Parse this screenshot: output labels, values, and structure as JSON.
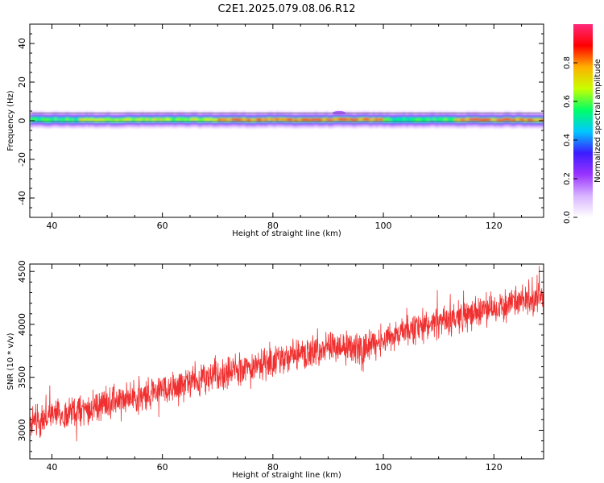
{
  "page": {
    "title": "C2E1.2025.079.08.06.R12"
  },
  "chart_data": [
    {
      "type": "heatmap",
      "xlabel": "Height of straight line (km)",
      "ylabel": "Frequency (Hz)",
      "xlim": [
        36,
        129
      ],
      "ylim": [
        -50,
        50
      ],
      "xticks": [
        "40",
        "60",
        "80",
        "100",
        "120"
      ],
      "yticks": [
        "40",
        "20",
        "0",
        "-20",
        "-40"
      ],
      "xtick_values": [
        40,
        60,
        80,
        100,
        120
      ],
      "ytick_values": [
        40,
        20,
        0,
        -20,
        -40
      ],
      "description_values": {
        "band_center_hz": 0.5,
        "band_halfwidth_hz": 4,
        "bright_segments": [
          {
            "from_km": 36,
            "to_km": 45,
            "peak": 0.55
          },
          {
            "from_km": 45,
            "to_km": 70,
            "peak": 0.65
          },
          {
            "from_km": 70,
            "to_km": 100,
            "peak": 0.85
          },
          {
            "from_km": 100,
            "to_km": 113,
            "peak": 0.55
          },
          {
            "from_km": 113,
            "to_km": 129,
            "peak": 0.85
          }
        ]
      },
      "colorbar": {
        "label": "Normalized spectral amplitude",
        "ticks": [
          "0.0",
          "0.2",
          "0.4",
          "0.6",
          "0.8"
        ],
        "tick_values": [
          0.0,
          0.2,
          0.4,
          0.6,
          0.8
        ],
        "range": [
          0,
          1
        ],
        "colors": [
          "#ffffff",
          "#d8b4ff",
          "#9a33ff",
          "#3b1cff",
          "#00c8ff",
          "#00ff66",
          "#c8ff00",
          "#ffb000",
          "#ff0000",
          "#ff2a7a"
        ]
      },
      "grid": false
    },
    {
      "type": "line",
      "xlabel": "Height of straight line (km)",
      "ylabel": "SNR (10 * v/v)",
      "xlim": [
        36,
        129
      ],
      "ylim": [
        2730,
        4570
      ],
      "xticks": [
        "40",
        "60",
        "80",
        "100",
        "120"
      ],
      "yticks": [
        "4500",
        "4000",
        "3500",
        "3000"
      ],
      "xtick_values": [
        40,
        60,
        80,
        100,
        120
      ],
      "ytick_values": [
        4500,
        4000,
        3500,
        3000
      ],
      "series": [
        {
          "color": "#f03030",
          "x": [
            36,
            38,
            40,
            42,
            44,
            46,
            48,
            50,
            52,
            54,
            56,
            58,
            60,
            62,
            64,
            66,
            68,
            70,
            72,
            74,
            76,
            78,
            80,
            82,
            84,
            86,
            88,
            90,
            92,
            94,
            96,
            98,
            100,
            102,
            104,
            106,
            108,
            110,
            112,
            114,
            116,
            118,
            120,
            122,
            124,
            126,
            128,
            129
          ],
          "values": [
            3080,
            3100,
            3130,
            3150,
            3170,
            3200,
            3230,
            3260,
            3280,
            3300,
            3330,
            3360,
            3390,
            3410,
            3440,
            3460,
            3490,
            3520,
            3560,
            3580,
            3600,
            3620,
            3650,
            3680,
            3700,
            3720,
            3750,
            3770,
            3800,
            3780,
            3760,
            3800,
            3880,
            3900,
            3930,
            3960,
            3990,
            4010,
            4040,
            4070,
            4100,
            4130,
            4150,
            4180,
            4200,
            4230,
            4250,
            4260
          ],
          "noise_amplitude": 180
        }
      ],
      "grid": false
    }
  ]
}
